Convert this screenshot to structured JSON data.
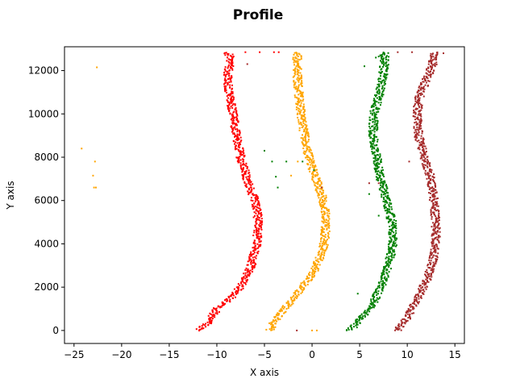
{
  "chart_data": {
    "type": "scatter",
    "title": "Profile",
    "xlabel": "X axis",
    "ylabel": "Y axis",
    "xlim": [
      -26.0,
      16.0
    ],
    "ylim": [
      -600,
      13100
    ],
    "xticks": [
      -25,
      -20,
      -15,
      -10,
      -5,
      0,
      5,
      10,
      15
    ],
    "xtick_labels": [
      "−25",
      "−20",
      "−15",
      "−10",
      "−5",
      "0",
      "5",
      "10",
      "15"
    ],
    "yticks": [
      0,
      2000,
      4000,
      6000,
      8000,
      10000,
      12000
    ],
    "ytick_labels": [
      "0",
      "2000",
      "4000",
      "6000",
      "8000",
      "10000",
      "12000"
    ],
    "grid": false,
    "series": [
      {
        "color": "#ff0000",
        "profile": [
          [
            -12.0,
            0
          ],
          [
            -10.8,
            400
          ],
          [
            -10.0,
            1000
          ],
          [
            -8.5,
            1500
          ],
          [
            -7.2,
            2200
          ],
          [
            -6.4,
            3000
          ],
          [
            -5.8,
            4000
          ],
          [
            -5.6,
            5000
          ],
          [
            -6.0,
            6000
          ],
          [
            -6.8,
            7000
          ],
          [
            -7.5,
            8000
          ],
          [
            -7.9,
            9000
          ],
          [
            -8.3,
            10000
          ],
          [
            -8.7,
            11000
          ],
          [
            -8.9,
            11800
          ],
          [
            -8.6,
            12500
          ],
          [
            -8.8,
            12850
          ]
        ],
        "outliers": [
          [
            -7.0,
            12850
          ],
          [
            -5.5,
            12850
          ],
          [
            -4.0,
            12850
          ],
          [
            -3.5,
            12850
          ]
        ]
      },
      {
        "color": "#ffa500",
        "profile": [
          [
            -4.5,
            0
          ],
          [
            -3.7,
            600
          ],
          [
            -2.5,
            1200
          ],
          [
            -1.0,
            2000
          ],
          [
            0.3,
            2800
          ],
          [
            1.2,
            3800
          ],
          [
            1.5,
            5000
          ],
          [
            1.2,
            6000
          ],
          [
            0.6,
            6800
          ],
          [
            0.0,
            7500
          ],
          [
            -0.5,
            8300
          ],
          [
            -1.0,
            9500
          ],
          [
            -1.3,
            10500
          ],
          [
            -1.5,
            11500
          ],
          [
            -1.6,
            12300
          ],
          [
            -1.5,
            12850
          ]
        ],
        "outliers": [
          [
            -22.6,
            12150
          ],
          [
            -24.2,
            8400
          ],
          [
            -22.8,
            7800
          ],
          [
            -23.0,
            7150
          ],
          [
            -22.9,
            6600
          ],
          [
            -22.7,
            6600
          ],
          [
            -1.5,
            7800
          ],
          [
            -2.2,
            7150
          ],
          [
            0.0,
            0
          ],
          [
            0.5,
            0
          ]
        ]
      },
      {
        "color": "#008000",
        "profile": [
          [
            4.0,
            0
          ],
          [
            5.2,
            600
          ],
          [
            6.5,
            1300
          ],
          [
            7.3,
            2100
          ],
          [
            8.0,
            3000
          ],
          [
            8.5,
            4000
          ],
          [
            8.4,
            5000
          ],
          [
            7.8,
            6000
          ],
          [
            7.2,
            7000
          ],
          [
            6.8,
            8000
          ],
          [
            6.4,
            9000
          ],
          [
            6.5,
            10000
          ],
          [
            7.0,
            10800
          ],
          [
            7.4,
            11600
          ],
          [
            7.6,
            12300
          ],
          [
            7.6,
            12850
          ]
        ],
        "outliers": [
          [
            6.7,
            12600
          ],
          [
            5.5,
            12200
          ],
          [
            7.0,
            12650
          ],
          [
            -5.0,
            8300
          ],
          [
            -4.2,
            7800
          ],
          [
            -3.8,
            7100
          ],
          [
            -3.6,
            6600
          ],
          [
            -2.7,
            7800
          ],
          [
            -1.0,
            7800
          ],
          [
            0.2,
            7400
          ],
          [
            6.0,
            6300
          ],
          [
            7.0,
            5300
          ],
          [
            4.8,
            1700
          ]
        ]
      },
      {
        "color": "#a52a2a",
        "profile": [
          [
            9.0,
            0
          ],
          [
            10.0,
            600
          ],
          [
            11.0,
            1400
          ],
          [
            12.0,
            2300
          ],
          [
            12.7,
            3200
          ],
          [
            13.0,
            4000
          ],
          [
            13.0,
            5000
          ],
          [
            12.8,
            6000
          ],
          [
            12.5,
            7000
          ],
          [
            11.8,
            8000
          ],
          [
            11.2,
            9000
          ],
          [
            11.0,
            10000
          ],
          [
            11.3,
            10800
          ],
          [
            12.0,
            11600
          ],
          [
            12.7,
            12300
          ],
          [
            12.8,
            12850
          ]
        ],
        "outliers": [
          [
            9.0,
            12850
          ],
          [
            10.5,
            12850
          ],
          [
            13.8,
            12800
          ],
          [
            10.2,
            7800
          ],
          [
            6.0,
            6800
          ],
          [
            7.0,
            6800
          ],
          [
            1.0,
            6600
          ],
          [
            -6.8,
            12300
          ],
          [
            -1.6,
            0
          ]
        ]
      }
    ]
  }
}
